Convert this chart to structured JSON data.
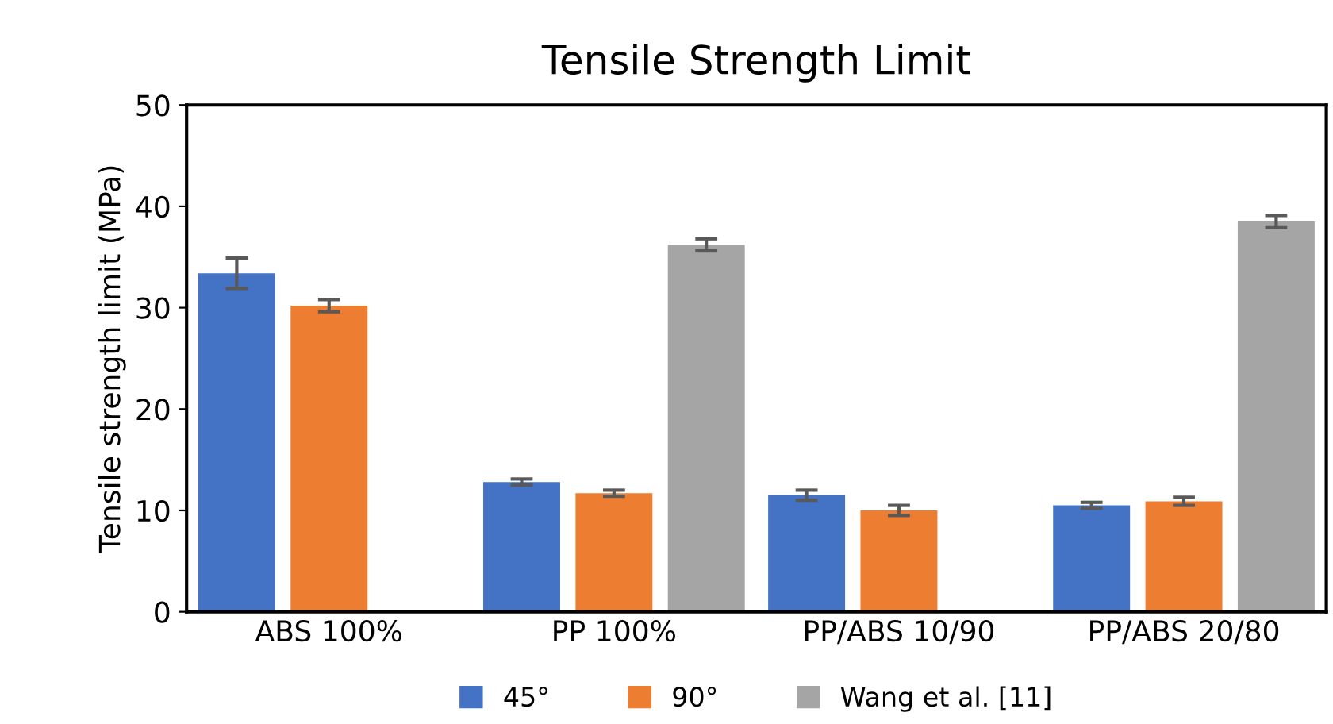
{
  "chart_data": {
    "type": "bar",
    "title": "Tensile Strength Limit",
    "ylabel": "Tensile strength limit (MPa)",
    "categories": [
      "ABS 100%",
      "PP 100%",
      "PP/ABS 10/90",
      "PP/ABS 20/80"
    ],
    "series": [
      {
        "name": "45°",
        "color": "#4472c4",
        "values": [
          33.4,
          12.8,
          11.5,
          10.5
        ],
        "errors": [
          1.5,
          0.3,
          0.5,
          0.3
        ]
      },
      {
        "name": "90°",
        "color": "#ed7d31",
        "values": [
          30.2,
          11.7,
          10.0,
          10.9
        ],
        "errors": [
          0.6,
          0.3,
          0.5,
          0.4
        ]
      },
      {
        "name": "Wang et al. [11]",
        "color": "#a5a5a5",
        "values": [
          null,
          36.2,
          null,
          38.5
        ],
        "errors": [
          null,
          0.6,
          null,
          0.6
        ]
      }
    ],
    "ylim": [
      0,
      50
    ],
    "yticks": [
      0,
      10,
      20,
      30,
      40,
      50
    ],
    "grid": false,
    "legend": "bottom"
  }
}
